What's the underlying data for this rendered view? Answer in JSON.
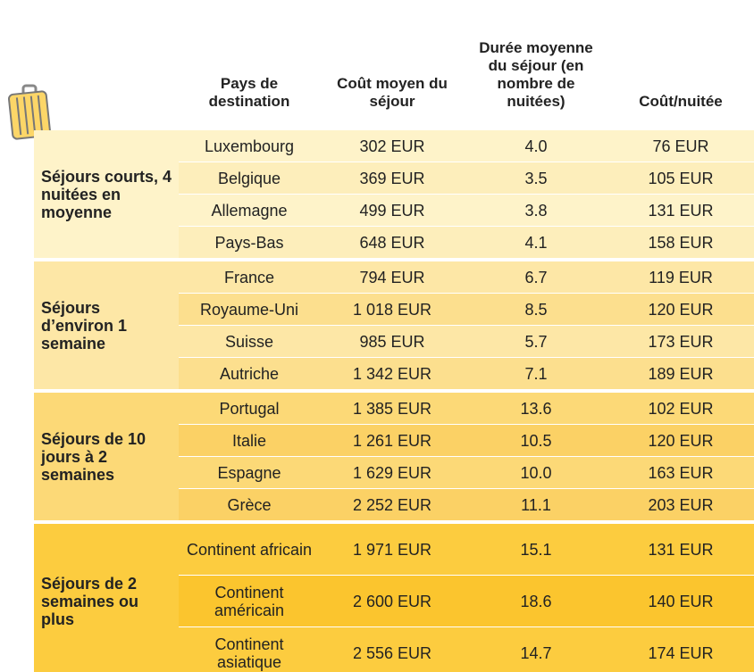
{
  "table": {
    "header": [
      "Pays de destination",
      "Coût moyen du séjour",
      "Durée moyenne du séjour (en nombre de nuitées)",
      "Coût/nuitée"
    ],
    "groups": [
      {
        "label": "Séjours courts, 4 nuitées en moyenne",
        "rows": [
          [
            "Luxembourg",
            "302 EUR",
            "4.0",
            "76 EUR"
          ],
          [
            "Belgique",
            "369 EUR",
            "3.5",
            "105 EUR"
          ],
          [
            "Allemagne",
            "499 EUR",
            "3.8",
            "131 EUR"
          ],
          [
            "Pays-Bas",
            "648 EUR",
            "4.1",
            "158 EUR"
          ]
        ]
      },
      {
        "label": "Séjours d’environ 1 semaine",
        "rows": [
          [
            "France",
            "794 EUR",
            "6.7",
            "119 EUR"
          ],
          [
            "Royaume-Uni",
            "1 018 EUR",
            "8.5",
            "120 EUR"
          ],
          [
            "Suisse",
            "985 EUR",
            "5.7",
            "173 EUR"
          ],
          [
            "Autriche",
            "1 342 EUR",
            "7.1",
            "189 EUR"
          ]
        ]
      },
      {
        "label": "Séjours de 10 jours à 2 semaines",
        "rows": [
          [
            "Portugal",
            "1 385 EUR",
            "13.6",
            "102 EUR"
          ],
          [
            "Italie",
            "1 261 EUR",
            "10.5",
            "120 EUR"
          ],
          [
            "Espagne",
            "1 629 EUR",
            "10.0",
            "163 EUR"
          ],
          [
            "Grèce",
            "2 252 EUR",
            "11.1",
            "203 EUR"
          ]
        ]
      },
      {
        "label": "Séjours de 2 semaines ou plus",
        "rows": [
          [
            "Continent africain",
            "1 971 EUR",
            "15.1",
            "131 EUR"
          ],
          [
            "Continent américain",
            "2 600 EUR",
            "18.6",
            "140 EUR"
          ],
          [
            "Continent asiatique",
            "2 556 EUR",
            "14.7",
            "174 EUR"
          ]
        ]
      }
    ]
  }
}
